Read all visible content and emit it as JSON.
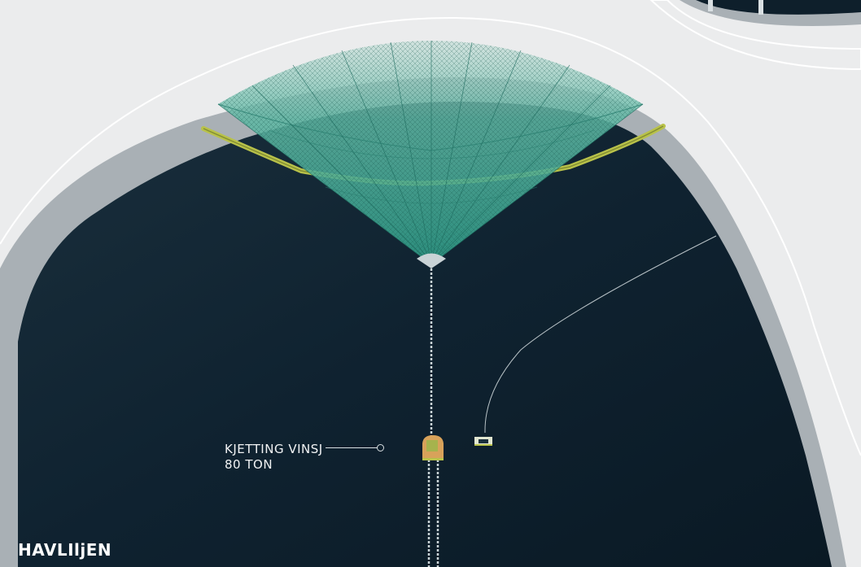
{
  "winch": {
    "label_line1": "KJETTING VINSJ",
    "label_line2": "80 TON"
  },
  "brand": {
    "logo_text": "HAVLIljEN"
  },
  "colors": {
    "background": "#ebeced",
    "water": "#0e1f2b",
    "rim": "#a9b0b5",
    "net": "#3fae9a",
    "ring": "#b9c24a",
    "winch": "#d8a25a"
  }
}
